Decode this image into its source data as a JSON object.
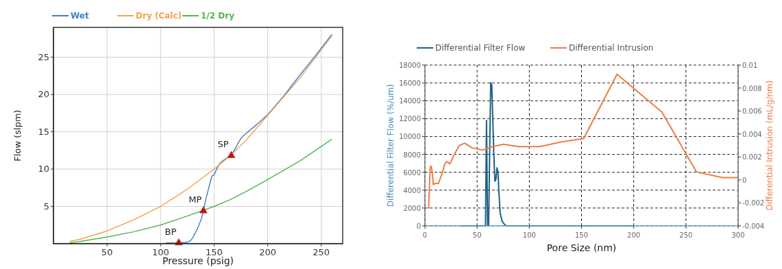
{
  "chart_data": [
    {
      "type": "line",
      "xlabel": "Pressure (psig)",
      "ylabel": "Flow (slpm)",
      "xlim": [
        0,
        270
      ],
      "ylim": [
        0,
        29
      ],
      "xticks": [
        50,
        100,
        150,
        200,
        250
      ],
      "yticks": [
        5,
        10,
        15,
        20,
        25
      ],
      "grid": true,
      "legend": "top",
      "series": [
        {
          "name": "Wet",
          "color": "#3f7fc4",
          "x": [
            105,
            115,
            125,
            128,
            130,
            133,
            135,
            138,
            140,
            142,
            145,
            147,
            148,
            150,
            152,
            155,
            158,
            160,
            163,
            166,
            170,
            172,
            176,
            180,
            190,
            200,
            215,
            230,
            245,
            260
          ],
          "values": [
            0.1,
            0.1,
            0.2,
            0.4,
            0.8,
            1.6,
            2.2,
            3.3,
            4.4,
            5.8,
            7.5,
            8.6,
            9.1,
            9.2,
            9.9,
            10.7,
            11.1,
            11.3,
            11.6,
            11.9,
            12.8,
            13.4,
            14.3,
            14.8,
            16.0,
            17.3,
            19.8,
            22.6,
            25.3,
            28.1
          ]
        },
        {
          "name": "Dry (Calc)",
          "color": "#f5a04a",
          "x": [
            15,
            25,
            50,
            75,
            100,
            125,
            150,
            165,
            180,
            200,
            230,
            260
          ],
          "values": [
            0.3,
            0.6,
            1.7,
            3.2,
            5.0,
            7.3,
            10.0,
            11.8,
            13.9,
            17.2,
            22.2,
            27.9
          ]
        },
        {
          "name": "1/2 Dry",
          "color": "#4cb84c",
          "x": [
            15,
            25,
            50,
            75,
            100,
            125,
            150,
            165,
            180,
            200,
            230,
            260
          ],
          "values": [
            0.1,
            0.3,
            0.9,
            1.6,
            2.5,
            3.7,
            5.0,
            5.9,
            7.0,
            8.6,
            11.1,
            14.0
          ]
        },
        {
          "type": "scatter",
          "marker": "triangle",
          "color": "#cc1111",
          "x": [
            117,
            140,
            166
          ],
          "values": [
            0.1,
            4.4,
            11.8
          ]
        }
      ],
      "annotations": [
        {
          "text": "BP",
          "x": 117,
          "y": 0.1
        },
        {
          "text": "MP",
          "x": 140,
          "y": 4.4
        },
        {
          "text": "SP",
          "x": 166,
          "y": 11.8
        }
      ]
    },
    {
      "type": "line",
      "xlabel": "Pore Size (nm)",
      "ylabel": "Differential Filter Flow (%/um)",
      "y2label": "Differential Intrusion (mL/g/nm)",
      "xlim": [
        0,
        300
      ],
      "ylim": [
        0,
        18000
      ],
      "y2lim": [
        -0.004,
        0.01
      ],
      "xticks": [
        0,
        50,
        100,
        150,
        200,
        250,
        300
      ],
      "yticks": [
        0,
        2000,
        4000,
        6000,
        8000,
        10000,
        12000,
        14000,
        16000,
        18000
      ],
      "y2ticks": [
        -0.004,
        -0.002,
        0,
        0.002,
        0.004,
        0.006,
        0.008,
        0.01
      ],
      "grid": true,
      "legend": "top",
      "series": [
        {
          "name": "Differential Filter Flow",
          "color": "#1f5f85",
          "x": [
            35,
            58,
            59,
            60,
            61,
            62,
            63,
            64,
            65,
            66,
            67,
            68,
            69,
            70,
            71,
            72,
            74,
            76,
            78,
            200
          ],
          "values": [
            0,
            0,
            11800,
            0,
            0,
            8000,
            16000,
            15800,
            12000,
            8000,
            5000,
            5200,
            6500,
            6000,
            3500,
            1500,
            500,
            200,
            0,
            0
          ]
        },
        {
          "name": "Differential Intrusion",
          "color": "#ed7d45",
          "axis": "y2",
          "x": [
            3.5,
            4,
            5,
            6,
            7,
            8,
            10,
            13,
            17,
            19,
            21,
            24,
            28,
            33,
            38,
            45,
            55,
            65,
            75,
            90,
            110,
            130,
            152,
            184,
            227,
            260,
            285,
            300
          ],
          "values": [
            -0.0025,
            -0.0013,
            0.0011,
            0.0012,
            0.0007,
            -0.0004,
            -0.0003,
            -0.0003,
            0.0007,
            0.0014,
            0.0016,
            0.0014,
            0.0022,
            0.003,
            0.0032,
            0.0028,
            0.0026,
            0.0029,
            0.0031,
            0.0029,
            0.0029,
            0.0033,
            0.0036,
            0.0092,
            0.0059,
            0.0007,
            0.0002,
            0.0002
          ]
        }
      ]
    }
  ]
}
